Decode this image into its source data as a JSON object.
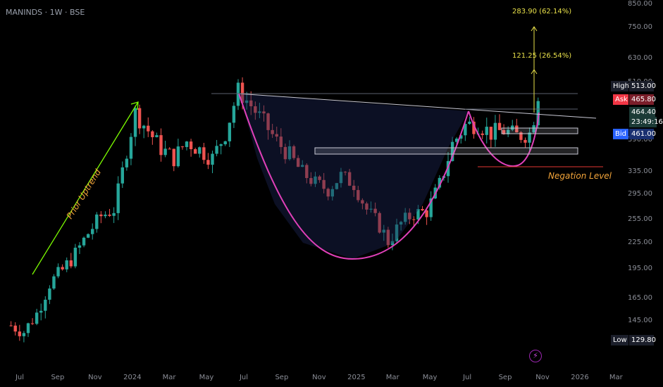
{
  "symbol": "MANINDS · 1W · BSE",
  "price_axis": {
    "ticks": [
      "850.00",
      "750.00",
      "630.00",
      "510.00",
      "390.00",
      "335.00",
      "295.00",
      "255.00",
      "225.00",
      "195.00",
      "165.00",
      "145.00"
    ]
  },
  "time_axis": {
    "ticks": [
      "Jul",
      "Sep",
      "Nov",
      "2024",
      "Mar",
      "May",
      "Jul",
      "Sep",
      "Nov",
      "2025",
      "Mar",
      "May",
      "Jul",
      "Sep",
      "Nov",
      "2026",
      "Mar"
    ]
  },
  "flags": {
    "high_key": "High",
    "high_val": "513.00",
    "ask_key": "Ask",
    "ask_val": "465.80",
    "last_val": "464.40",
    "countdown": "23:49:16",
    "bid_key": "Bid",
    "bid_val": "461.00",
    "low_key": "Low",
    "low_val": "129.80"
  },
  "annotations": {
    "prior_uptrend": "Prior Uptrend",
    "negation_level": "Negation Level",
    "target1": "121.25 (26.54%)",
    "target2": "283.90 (62.14%)"
  },
  "colors": {
    "up": "#26a69a",
    "down": "#ef5350",
    "cup": "#e040b9",
    "uptrend": "#7cfc00",
    "negation": "#f4a53a",
    "target": "#e8e04a",
    "bid": "#2962ff",
    "ask": "#f23645"
  },
  "chart_data": {
    "type": "candlestick",
    "title": "",
    "y_scale": "log",
    "ylim": [
      120,
      860
    ],
    "x_range": [
      "2023-06",
      "2026-03"
    ],
    "weekly_close_path": [
      {
        "date": "2023-06-26",
        "close": 140
      },
      {
        "date": "2023-07-17",
        "close": 135
      },
      {
        "date": "2023-08-07",
        "close": 150
      },
      {
        "date": "2023-08-28",
        "close": 178
      },
      {
        "date": "2023-09-18",
        "close": 192
      },
      {
        "date": "2023-10-09",
        "close": 210
      },
      {
        "date": "2023-10-30",
        "close": 235
      },
      {
        "date": "2023-11-20",
        "close": 258
      },
      {
        "date": "2023-12-11",
        "close": 268
      },
      {
        "date": "2024-01-01",
        "close": 370
      },
      {
        "date": "2024-01-15",
        "close": 440
      },
      {
        "date": "2024-02-05",
        "close": 405
      },
      {
        "date": "2024-02-26",
        "close": 372
      },
      {
        "date": "2024-03-18",
        "close": 355
      },
      {
        "date": "2024-04-08",
        "close": 385
      },
      {
        "date": "2024-04-29",
        "close": 370
      },
      {
        "date": "2024-05-20",
        "close": 355
      },
      {
        "date": "2024-06-10",
        "close": 400
      },
      {
        "date": "2024-07-01",
        "close": 488
      },
      {
        "date": "2024-07-22",
        "close": 455
      },
      {
        "date": "2024-08-12",
        "close": 420
      },
      {
        "date": "2024-09-02",
        "close": 385
      },
      {
        "date": "2024-09-23",
        "close": 360
      },
      {
        "date": "2024-10-14",
        "close": 330
      },
      {
        "date": "2024-11-04",
        "close": 312
      },
      {
        "date": "2024-11-25",
        "close": 300
      },
      {
        "date": "2024-12-16",
        "close": 325
      },
      {
        "date": "2025-01-06",
        "close": 310
      },
      {
        "date": "2025-01-27",
        "close": 268
      },
      {
        "date": "2025-02-17",
        "close": 245
      },
      {
        "date": "2025-03-03",
        "close": 225
      },
      {
        "date": "2025-03-24",
        "close": 248
      },
      {
        "date": "2025-04-14",
        "close": 262
      },
      {
        "date": "2025-05-05",
        "close": 265
      },
      {
        "date": "2025-05-26",
        "close": 310
      },
      {
        "date": "2025-06-16",
        "close": 380
      },
      {
        "date": "2025-07-07",
        "close": 415
      },
      {
        "date": "2025-07-28",
        "close": 418
      },
      {
        "date": "2025-08-18",
        "close": 400
      },
      {
        "date": "2025-09-08",
        "close": 405
      },
      {
        "date": "2025-09-29",
        "close": 395
      },
      {
        "date": "2025-10-20",
        "close": 400
      },
      {
        "date": "2025-11-03",
        "close": 464.4
      }
    ],
    "levels": {
      "resistance_top": 513.0,
      "negation_level": 340,
      "support_zone": [
        385,
        398
      ],
      "handle_zone": [
        410,
        418
      ],
      "target1": 121.25,
      "target1_pct": 26.54,
      "target2": 283.9,
      "target2_pct": 62.14
    }
  }
}
